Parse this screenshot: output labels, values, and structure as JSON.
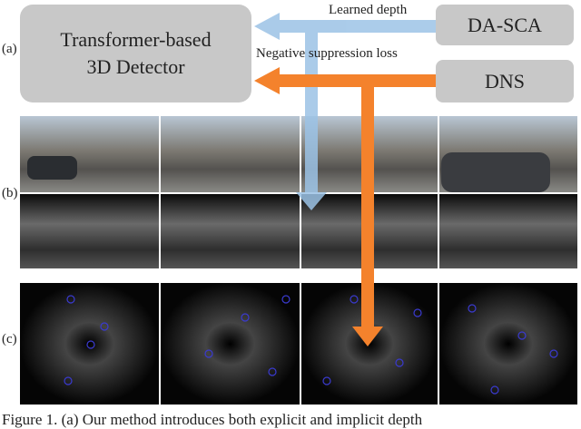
{
  "figure": {
    "panel_labels": [
      "(a)",
      "(b)",
      "(c)"
    ],
    "detector": "Transformer-based\n3D Detector",
    "modules": [
      "DA-SCA",
      "DNS"
    ],
    "arrows": [
      "Learned depth",
      "Negative suppression loss"
    ],
    "caption": "Figure 1. (a) Our method introduces both explicit and implicit depth"
  }
}
